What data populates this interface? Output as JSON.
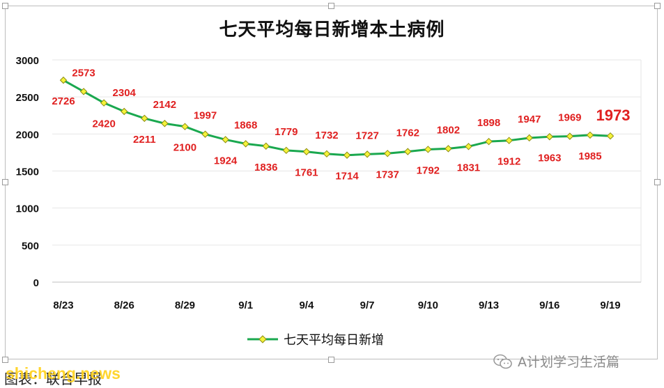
{
  "title": "七天平均每日新增本土病例",
  "footer_source": "图表：联合早报",
  "watermark": "shicheng.news",
  "wechat_label": "A计划学习生活篇",
  "legend_label": "七天平均每日新增",
  "colors": {
    "line": "#1aa84f",
    "marker_fill": "#f4f33a",
    "marker_stroke": "#8c8c12",
    "label": "#e02020",
    "grid": "#e6e6e6",
    "axis_text": "#111111"
  },
  "chart_data": {
    "type": "line",
    "title": "七天平均每日新增本土病例",
    "xlabel": "",
    "ylabel": "",
    "ylim": [
      0,
      3000
    ],
    "yticks": [
      0,
      500,
      1000,
      1500,
      2000,
      2500,
      3000
    ],
    "grid": true,
    "legend_position": "bottom",
    "x": [
      "8/23",
      "8/24",
      "8/25",
      "8/26",
      "8/27",
      "8/28",
      "8/29",
      "8/30",
      "8/31",
      "9/1",
      "9/2",
      "9/3",
      "9/4",
      "9/5",
      "9/6",
      "9/7",
      "9/8",
      "9/9",
      "9/10",
      "9/11",
      "9/12",
      "9/13",
      "9/14",
      "9/15",
      "9/16",
      "9/17",
      "9/18",
      "9/19"
    ],
    "xtick_labels": [
      "8/23",
      "8/26",
      "8/29",
      "9/1",
      "9/4",
      "9/7",
      "9/10",
      "9/13",
      "9/16",
      "9/19"
    ],
    "series": [
      {
        "name": "七天平均每日新增",
        "values": [
          2726,
          2573,
          2420,
          2304,
          2211,
          2142,
          2100,
          1997,
          1924,
          1868,
          1836,
          1779,
          1761,
          1732,
          1714,
          1727,
          1737,
          1762,
          1792,
          1802,
          1831,
          1898,
          1912,
          1947,
          1963,
          1969,
          1985,
          1973
        ]
      }
    ]
  }
}
